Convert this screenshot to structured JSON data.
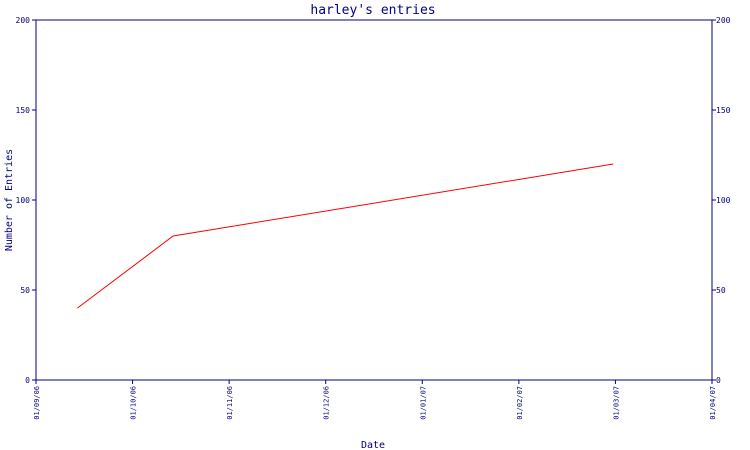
{
  "chart_data": {
    "type": "line",
    "title": "harley's entries",
    "xlabel": "Date",
    "ylabel": "Number of Entries",
    "x_ticks": [
      "01/09/06",
      "01/10/06",
      "01/11/06",
      "01/12/06",
      "01/01/07",
      "01/02/07",
      "01/03/07",
      "01/04/07"
    ],
    "y_ticks": [
      0,
      50,
      100,
      150,
      200
    ],
    "ylim": [
      0,
      200
    ],
    "xlim": [
      "2006-09-01",
      "2007-04-01"
    ],
    "series": [
      {
        "x": [
          "2006-09-14",
          "2006-10-14",
          "2007-03-01"
        ],
        "y": [
          40,
          80,
          120
        ]
      }
    ],
    "colors": {
      "axis": "#000080",
      "line": "#ff0000",
      "title": "#000080",
      "label": "#000080"
    },
    "grid": false,
    "right_axis": true
  }
}
